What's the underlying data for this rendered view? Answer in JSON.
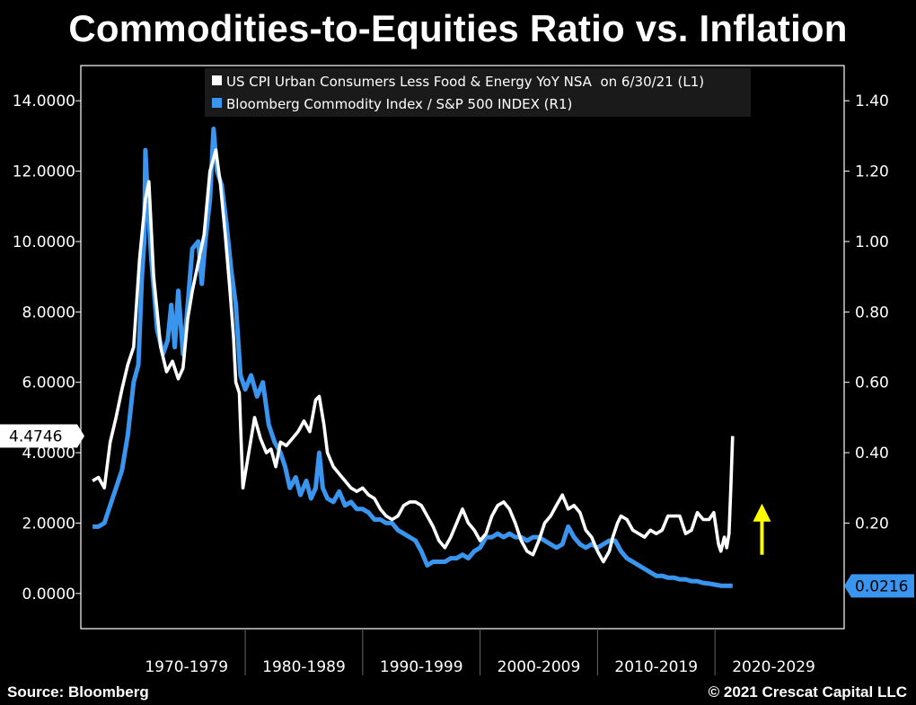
{
  "title": "Commodities-to-Equities Ratio vs. Inflation",
  "footer": {
    "source": "Source: Bloomberg",
    "copyright": "© 2021 Crescat Capital LLC"
  },
  "colors": {
    "background": "#000000",
    "cpi_line": "#ffffff",
    "ratio_line": "#3a95ee",
    "arrow": "#ffff00"
  },
  "chart_data": {
    "type": "line",
    "legend": [
      {
        "series": "cpi",
        "label": "US CPI Urban Consumers Less Food & Energy YoY NSA  on 6/30/21 (L1)"
      },
      {
        "series": "ratio",
        "label": "Bloomberg Commodity Index / S&P 500 INDEX (R1)"
      }
    ],
    "x_categories": [
      "1970-1979",
      "1980-1989",
      "1990-1999",
      "2000-2009",
      "2010-2019",
      "2020-2029"
    ],
    "x_range": [
      1966,
      2031
    ],
    "y_left": {
      "range": [
        -1.0,
        15.0
      ],
      "ticks": [
        0,
        2,
        4,
        6,
        8,
        10,
        12,
        14
      ],
      "tick_labels": [
        "0.0000",
        "2.0000",
        "4.0000",
        "6.0000",
        "8.0000",
        "10.0000",
        "12.0000",
        "14.0000"
      ],
      "last_value_label": "4.4746",
      "last_value": 4.4746
    },
    "y_right": {
      "range": [
        -0.1,
        1.5
      ],
      "ticks": [
        0.2,
        0.4,
        0.6,
        0.8,
        1.0,
        1.2,
        1.4
      ],
      "tick_labels": [
        "0.20",
        "0.40",
        "0.60",
        "0.80",
        "1.00",
        "1.20",
        "1.40"
      ],
      "last_value_label": "0.0216",
      "last_value": 0.0216
    },
    "series": [
      {
        "name": "US CPI Urban Consumers Less Food & Energy YoY NSA",
        "key": "cpi",
        "axis": "left",
        "points": [
          [
            1967.0,
            3.2
          ],
          [
            1967.5,
            3.3
          ],
          [
            1968.0,
            3.0
          ],
          [
            1968.5,
            4.3
          ],
          [
            1969.0,
            5.0
          ],
          [
            1969.5,
            5.8
          ],
          [
            1970.0,
            6.5
          ],
          [
            1970.5,
            7.0
          ],
          [
            1971.0,
            9.5
          ],
          [
            1971.5,
            11.2
          ],
          [
            1971.8,
            11.7
          ],
          [
            1972.2,
            9.0
          ],
          [
            1972.8,
            7.0
          ],
          [
            1973.3,
            6.3
          ],
          [
            1973.8,
            6.6
          ],
          [
            1974.3,
            6.1
          ],
          [
            1974.7,
            6.4
          ],
          [
            1975.1,
            7.8
          ],
          [
            1975.5,
            8.6
          ],
          [
            1976.0,
            9.4
          ],
          [
            1976.5,
            10.2
          ],
          [
            1977.0,
            12.0
          ],
          [
            1977.5,
            12.6
          ],
          [
            1977.9,
            11.6
          ],
          [
            1978.3,
            10.2
          ],
          [
            1978.7,
            8.6
          ],
          [
            1979.0,
            7.3
          ],
          [
            1979.2,
            6.0
          ],
          [
            1979.5,
            5.7
          ],
          [
            1979.8,
            3.0
          ],
          [
            1980.3,
            4.0
          ],
          [
            1980.8,
            5.0
          ],
          [
            1981.3,
            4.4
          ],
          [
            1981.8,
            4.0
          ],
          [
            1982.2,
            4.1
          ],
          [
            1982.6,
            3.6
          ],
          [
            1983.0,
            4.3
          ],
          [
            1983.5,
            4.2
          ],
          [
            1984.0,
            4.4
          ],
          [
            1984.5,
            4.6
          ],
          [
            1985.0,
            4.9
          ],
          [
            1985.5,
            4.6
          ],
          [
            1986.0,
            5.5
          ],
          [
            1986.3,
            5.6
          ],
          [
            1986.7,
            4.8
          ],
          [
            1987.0,
            4.0
          ],
          [
            1987.5,
            3.6
          ],
          [
            1988.0,
            3.4
          ],
          [
            1988.5,
            3.2
          ],
          [
            1989.0,
            3.0
          ],
          [
            1989.5,
            2.9
          ],
          [
            1990.0,
            3.0
          ],
          [
            1990.5,
            2.8
          ],
          [
            1991.0,
            2.7
          ],
          [
            1991.5,
            2.4
          ],
          [
            1992.0,
            2.2
          ],
          [
            1992.5,
            2.1
          ],
          [
            1993.0,
            2.2
          ],
          [
            1993.5,
            2.5
          ],
          [
            1994.0,
            2.6
          ],
          [
            1994.5,
            2.6
          ],
          [
            1995.0,
            2.5
          ],
          [
            1995.5,
            2.2
          ],
          [
            1996.0,
            1.9
          ],
          [
            1996.5,
            1.5
          ],
          [
            1997.0,
            1.3
          ],
          [
            1997.5,
            1.6
          ],
          [
            1998.0,
            2.0
          ],
          [
            1998.5,
            2.4
          ],
          [
            1999.0,
            2.0
          ],
          [
            1999.5,
            1.8
          ],
          [
            2000.0,
            1.5
          ],
          [
            2000.5,
            1.7
          ],
          [
            2001.0,
            2.2
          ],
          [
            2001.5,
            2.5
          ],
          [
            2002.0,
            2.6
          ],
          [
            2002.5,
            2.4
          ],
          [
            2003.0,
            2.0
          ],
          [
            2003.5,
            1.5
          ],
          [
            2004.0,
            1.2
          ],
          [
            2004.5,
            1.1
          ],
          [
            2005.0,
            1.5
          ],
          [
            2005.5,
            2.0
          ],
          [
            2006.0,
            2.2
          ],
          [
            2006.5,
            2.5
          ],
          [
            2007.0,
            2.8
          ],
          [
            2007.5,
            2.4
          ],
          [
            2008.0,
            2.5
          ],
          [
            2008.5,
            2.3
          ],
          [
            2009.0,
            1.8
          ],
          [
            2009.5,
            1.6
          ],
          [
            2010.0,
            1.2
          ],
          [
            2010.5,
            0.9
          ],
          [
            2011.0,
            1.2
          ],
          [
            2011.3,
            1.6
          ],
          [
            2011.7,
            2.0
          ],
          [
            2012.0,
            2.2
          ],
          [
            2012.5,
            2.1
          ],
          [
            2013.0,
            1.8
          ],
          [
            2013.5,
            1.7
          ],
          [
            2014.0,
            1.6
          ],
          [
            2014.5,
            1.8
          ],
          [
            2015.0,
            1.7
          ],
          [
            2015.5,
            1.8
          ],
          [
            2016.0,
            2.2
          ],
          [
            2016.5,
            2.2
          ],
          [
            2017.0,
            2.2
          ],
          [
            2017.5,
            1.7
          ],
          [
            2018.0,
            1.8
          ],
          [
            2018.5,
            2.3
          ],
          [
            2019.0,
            2.1
          ],
          [
            2019.5,
            2.1
          ],
          [
            2019.9,
            2.3
          ],
          [
            2020.3,
            1.4
          ],
          [
            2020.5,
            1.2
          ],
          [
            2020.8,
            1.6
          ],
          [
            2021.0,
            1.3
          ],
          [
            2021.2,
            1.7
          ],
          [
            2021.35,
            3.0
          ],
          [
            2021.5,
            4.47
          ]
        ]
      },
      {
        "name": "Bloomberg Commodity Index / S&P 500 INDEX",
        "key": "ratio",
        "axis": "right",
        "points": [
          [
            1967.0,
            0.19
          ],
          [
            1967.5,
            0.19
          ],
          [
            1968.0,
            0.2
          ],
          [
            1968.5,
            0.25
          ],
          [
            1969.0,
            0.3
          ],
          [
            1969.5,
            0.35
          ],
          [
            1970.0,
            0.45
          ],
          [
            1970.5,
            0.6
          ],
          [
            1970.9,
            0.65
          ],
          [
            1971.2,
            0.9
          ],
          [
            1971.4,
            1.0
          ],
          [
            1971.5,
            1.26
          ],
          [
            1971.7,
            1.12
          ],
          [
            1972.0,
            0.95
          ],
          [
            1972.5,
            0.75
          ],
          [
            1973.0,
            0.68
          ],
          [
            1973.4,
            0.72
          ],
          [
            1973.7,
            0.82
          ],
          [
            1974.0,
            0.7
          ],
          [
            1974.3,
            0.86
          ],
          [
            1974.7,
            0.68
          ],
          [
            1975.0,
            0.78
          ],
          [
            1975.5,
            0.98
          ],
          [
            1976.0,
            1.0
          ],
          [
            1976.3,
            0.88
          ],
          [
            1976.6,
            1.0
          ],
          [
            1977.0,
            1.12
          ],
          [
            1977.3,
            1.32
          ],
          [
            1977.6,
            1.2
          ],
          [
            1978.0,
            1.16
          ],
          [
            1978.4,
            1.05
          ],
          [
            1978.8,
            0.92
          ],
          [
            1979.2,
            0.82
          ],
          [
            1979.6,
            0.62
          ],
          [
            1980.0,
            0.58
          ],
          [
            1980.5,
            0.62
          ],
          [
            1981.0,
            0.56
          ],
          [
            1981.5,
            0.6
          ],
          [
            1982.0,
            0.48
          ],
          [
            1982.5,
            0.43
          ],
          [
            1983.0,
            0.4
          ],
          [
            1983.4,
            0.36
          ],
          [
            1983.8,
            0.3
          ],
          [
            1984.3,
            0.33
          ],
          [
            1984.7,
            0.28
          ],
          [
            1985.2,
            0.32
          ],
          [
            1985.6,
            0.27
          ],
          [
            1986.0,
            0.3
          ],
          [
            1986.3,
            0.4
          ],
          [
            1986.6,
            0.3
          ],
          [
            1987.0,
            0.27
          ],
          [
            1987.5,
            0.26
          ],
          [
            1988.0,
            0.29
          ],
          [
            1988.5,
            0.25
          ],
          [
            1989.0,
            0.26
          ],
          [
            1989.5,
            0.24
          ],
          [
            1990.0,
            0.24
          ],
          [
            1990.5,
            0.23
          ],
          [
            1991.0,
            0.21
          ],
          [
            1991.5,
            0.21
          ],
          [
            1992.0,
            0.2
          ],
          [
            1992.5,
            0.2
          ],
          [
            1993.0,
            0.18
          ],
          [
            1993.5,
            0.17
          ],
          [
            1994.0,
            0.16
          ],
          [
            1994.5,
            0.15
          ],
          [
            1995.0,
            0.12
          ],
          [
            1995.5,
            0.08
          ],
          [
            1996.0,
            0.09
          ],
          [
            1996.5,
            0.09
          ],
          [
            1997.0,
            0.09
          ],
          [
            1997.5,
            0.1
          ],
          [
            1998.0,
            0.1
          ],
          [
            1998.5,
            0.11
          ],
          [
            1999.0,
            0.1
          ],
          [
            1999.5,
            0.12
          ],
          [
            2000.0,
            0.13
          ],
          [
            2000.5,
            0.16
          ],
          [
            2001.0,
            0.16
          ],
          [
            2001.5,
            0.17
          ],
          [
            2002.0,
            0.16
          ],
          [
            2002.5,
            0.17
          ],
          [
            2003.0,
            0.16
          ],
          [
            2003.5,
            0.16
          ],
          [
            2004.0,
            0.15
          ],
          [
            2004.5,
            0.16
          ],
          [
            2005.0,
            0.16
          ],
          [
            2005.5,
            0.15
          ],
          [
            2006.0,
            0.14
          ],
          [
            2006.5,
            0.13
          ],
          [
            2007.0,
            0.14
          ],
          [
            2007.5,
            0.19
          ],
          [
            2008.0,
            0.16
          ],
          [
            2008.5,
            0.14
          ],
          [
            2009.0,
            0.13
          ],
          [
            2009.5,
            0.14
          ],
          [
            2010.0,
            0.13
          ],
          [
            2010.5,
            0.14
          ],
          [
            2011.0,
            0.15
          ],
          [
            2011.5,
            0.15
          ],
          [
            2012.0,
            0.12
          ],
          [
            2012.5,
            0.1
          ],
          [
            2013.0,
            0.09
          ],
          [
            2013.5,
            0.08
          ],
          [
            2014.0,
            0.07
          ],
          [
            2014.5,
            0.06
          ],
          [
            2015.0,
            0.05
          ],
          [
            2015.5,
            0.05
          ],
          [
            2016.0,
            0.045
          ],
          [
            2016.5,
            0.045
          ],
          [
            2017.0,
            0.04
          ],
          [
            2017.5,
            0.04
          ],
          [
            2018.0,
            0.035
          ],
          [
            2018.5,
            0.035
          ],
          [
            2019.0,
            0.03
          ],
          [
            2019.5,
            0.028
          ],
          [
            2020.0,
            0.025
          ],
          [
            2020.5,
            0.022
          ],
          [
            2021.0,
            0.022
          ],
          [
            2021.5,
            0.0216
          ]
        ]
      }
    ],
    "annotation": {
      "type": "arrow",
      "direction": "up",
      "x": 2024.0,
      "y_from": 1.1,
      "y_to": 2.4,
      "axis": "left"
    }
  }
}
